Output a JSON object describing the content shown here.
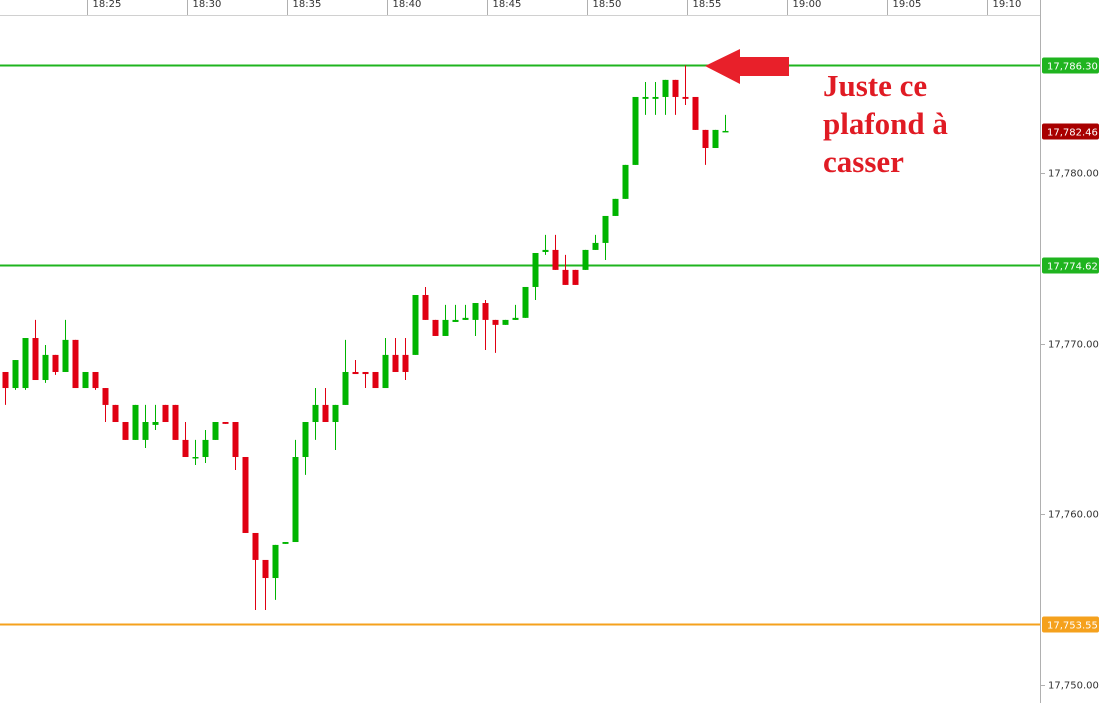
{
  "chart_data": {
    "type": "candlestick",
    "up_color": "#00b400",
    "down_color": "#e00012",
    "x": [
      1100.9,
      1101.4,
      1101.9,
      1102.4,
      1102.9,
      1103.4,
      1103.9,
      1104.4,
      1104.9,
      1105.4,
      1105.9,
      1106.4,
      1106.9,
      1107.4,
      1107.9,
      1108.4,
      1108.9,
      1109.4,
      1109.9,
      1110.4,
      1110.9,
      1111.4,
      1111.9,
      1112.4,
      1112.9,
      1113.4,
      1113.9,
      1114.4,
      1114.9,
      1115.4,
      1115.9,
      1116.4,
      1116.9,
      1117.4,
      1117.9,
      1118.4,
      1118.9,
      1119.4,
      1119.9,
      1120.4,
      1120.9,
      1121.4,
      1121.9,
      1122.4,
      1122.9,
      1123.4,
      1123.9,
      1124.4,
      1124.9,
      1125.4,
      1125.9,
      1126.4,
      1126.9,
      1127.4,
      1127.9,
      1128.4,
      1128.9,
      1129.4,
      1129.9,
      1130.4,
      1130.9,
      1131.4,
      1131.9,
      1132.4,
      1132.9,
      1133.4,
      1133.9,
      1134.4,
      1134.9,
      1135.4,
      1135.9,
      1136.4,
      1136.9
    ],
    "open": [
      17768.34,
      17767.4,
      17767.4,
      17770.33,
      17767.87,
      17769.34,
      17768.34,
      17770.22,
      17767.4,
      17768.34,
      17767.4,
      17766.41,
      17765.41,
      17764.36,
      17764.36,
      17765.24,
      17766.41,
      17766.41,
      17764.36,
      17763.3,
      17763.36,
      17764.36,
      17765.41,
      17765.41,
      17763.36,
      17758.91,
      17757.33,
      17756.27,
      17758.27,
      17758.38,
      17763.36,
      17765.41,
      17766.41,
      17765.41,
      17766.41,
      17768.34,
      17768.34,
      17768.34,
      17767.4,
      17769.34,
      17769.34,
      17769.34,
      17772.85,
      17771.39,
      17770.45,
      17771.27,
      17771.39,
      17771.39,
      17772.38,
      17771.39,
      17771.1,
      17771.39,
      17771.51,
      17773.32,
      17775.37,
      17775.49,
      17774.32,
      17774.32,
      17774.32,
      17775.49,
      17775.9,
      17777.48,
      17778.48,
      17780.47,
      17784.34,
      17784.34,
      17784.45,
      17785.45,
      17784.45,
      17784.45,
      17782.52,
      17781.46,
      17782.4
    ],
    "high": [
      17768.34,
      17769.04,
      17770.33,
      17771.39,
      17769.92,
      17769.34,
      17771.39,
      17770.22,
      17768.34,
      17768.34,
      17767.4,
      17766.41,
      17765.41,
      17766.41,
      17766.41,
      17766.41,
      17766.41,
      17766.41,
      17765.41,
      17764.36,
      17764.94,
      17765.41,
      17765.41,
      17765.41,
      17763.36,
      17758.91,
      17757.33,
      17758.21,
      17758.38,
      17764.36,
      17765.41,
      17767.4,
      17767.4,
      17766.41,
      17770.22,
      17769.04,
      17768.34,
      17768.34,
      17770.33,
      17770.33,
      17770.33,
      17772.85,
      17773.32,
      17771.39,
      17772.27,
      17772.27,
      17772.27,
      17772.38,
      17772.56,
      17771.39,
      17771.39,
      17772.27,
      17773.32,
      17775.31,
      17776.37,
      17776.37,
      17775.2,
      17774.32,
      17775.49,
      17776.37,
      17777.48,
      17778.48,
      17780.47,
      17784.45,
      17785.33,
      17785.33,
      17785.45,
      17785.45,
      17786.3,
      17784.45,
      17782.52,
      17782.52,
      17783.4
    ],
    "low": [
      17766.41,
      17767.29,
      17767.29,
      17767.87,
      17767.7,
      17768.17,
      17768.34,
      17767.4,
      17767.4,
      17767.29,
      17765.41,
      17765.41,
      17764.36,
      17764.36,
      17763.89,
      17764.94,
      17765.41,
      17764.36,
      17763.36,
      17762.89,
      17763.01,
      17764.36,
      17765.3,
      17762.6,
      17758.91,
      17754.4,
      17754.4,
      17754.99,
      17758.27,
      17758.38,
      17762.31,
      17764.36,
      17765.41,
      17763.77,
      17766.41,
      17768.22,
      17767.4,
      17767.4,
      17767.4,
      17768.34,
      17767.87,
      17769.34,
      17771.39,
      17770.45,
      17770.45,
      17771.27,
      17771.39,
      17770.45,
      17769.63,
      17769.46,
      17771.1,
      17771.39,
      17771.51,
      17772.56,
      17775.2,
      17774.32,
      17773.44,
      17773.44,
      17774.32,
      17775.49,
      17774.9,
      17777.48,
      17778.48,
      17780.47,
      17783.4,
      17783.4,
      17783.4,
      17783.4,
      17783.98,
      17782.52,
      17780.47,
      17781.46,
      17782.4
    ],
    "close": [
      17767.4,
      17769.04,
      17770.33,
      17767.87,
      17769.34,
      17768.34,
      17770.22,
      17767.4,
      17768.34,
      17767.4,
      17766.41,
      17765.41,
      17764.36,
      17766.41,
      17765.41,
      17765.41,
      17765.41,
      17764.36,
      17763.36,
      17763.36,
      17764.36,
      17765.41,
      17765.3,
      17763.36,
      17758.91,
      17757.33,
      17756.27,
      17758.21,
      17758.38,
      17763.36,
      17765.41,
      17766.41,
      17765.41,
      17766.41,
      17768.34,
      17768.22,
      17768.22,
      17767.4,
      17769.34,
      17768.34,
      17768.34,
      17772.85,
      17771.39,
      17770.45,
      17771.39,
      17771.39,
      17771.51,
      17772.38,
      17771.39,
      17771.1,
      17771.39,
      17771.51,
      17773.32,
      17775.31,
      17775.49,
      17774.32,
      17773.44,
      17773.44,
      17775.49,
      17775.9,
      17777.48,
      17778.48,
      17780.47,
      17784.45,
      17784.45,
      17784.45,
      17785.45,
      17784.45,
      17784.34,
      17782.52,
      17781.46,
      17782.52,
      17782.46
    ],
    "xlim": [
      1100.65,
      1152.65
    ],
    "xticks": [
      {
        "value": 1105,
        "label": "18:25"
      },
      {
        "value": 1110,
        "label": "18:30"
      },
      {
        "value": 1115,
        "label": "18:35"
      },
      {
        "value": 1120,
        "label": "18:40"
      },
      {
        "value": 1125,
        "label": "18:45"
      },
      {
        "value": 1130,
        "label": "18:50"
      },
      {
        "value": 1135,
        "label": "18:55"
      },
      {
        "value": 1140,
        "label": "19:00"
      },
      {
        "value": 1145,
        "label": "19:05"
      },
      {
        "value": 1150,
        "label": "19:10"
      }
    ],
    "ylim": [
      17748.95,
      17790.13
    ],
    "yticks": [
      {
        "value": 17750,
        "label": "17,750.00"
      },
      {
        "value": 17760,
        "label": "17,760.00"
      },
      {
        "value": 17770,
        "label": "17,770.00"
      },
      {
        "value": 17780,
        "label": "17,780.00"
      }
    ],
    "levels": [
      {
        "value": 17786.3,
        "label": "17,786.30",
        "color": "#1fb41f"
      },
      {
        "value": 17774.62,
        "label": "17,774.62",
        "color": "#1fb41f"
      },
      {
        "value": 17753.55,
        "label": "17,753.55",
        "color": "#f5a11d"
      }
    ],
    "last_price": {
      "value": 17782.46,
      "label": "17,782.46",
      "color": "#a80000"
    },
    "annotation": [
      "Juste ce",
      "plafond à",
      "casser"
    ]
  }
}
